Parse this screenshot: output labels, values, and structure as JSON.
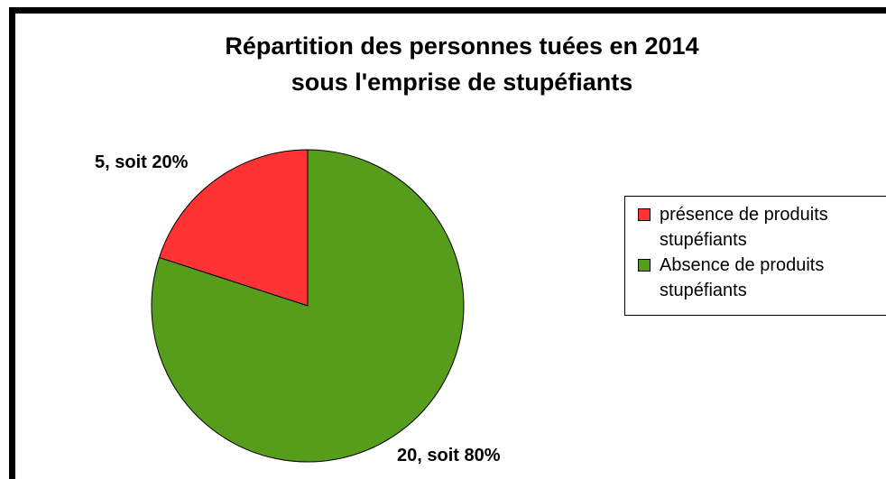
{
  "chart_data": {
    "type": "pie",
    "title": [
      "Répartition des personnes tuées en 2014",
      "sous l'emprise de stupéfiants"
    ],
    "categories": [
      "présence de produits stupéfiants",
      "Absence de produits stupéfiants"
    ],
    "values": [
      5,
      20
    ],
    "value_labels": [
      "5, soit 20%",
      "20, soit 80%"
    ],
    "colors": [
      "#ff3333",
      "#579d1c"
    ],
    "legend": "right"
  }
}
